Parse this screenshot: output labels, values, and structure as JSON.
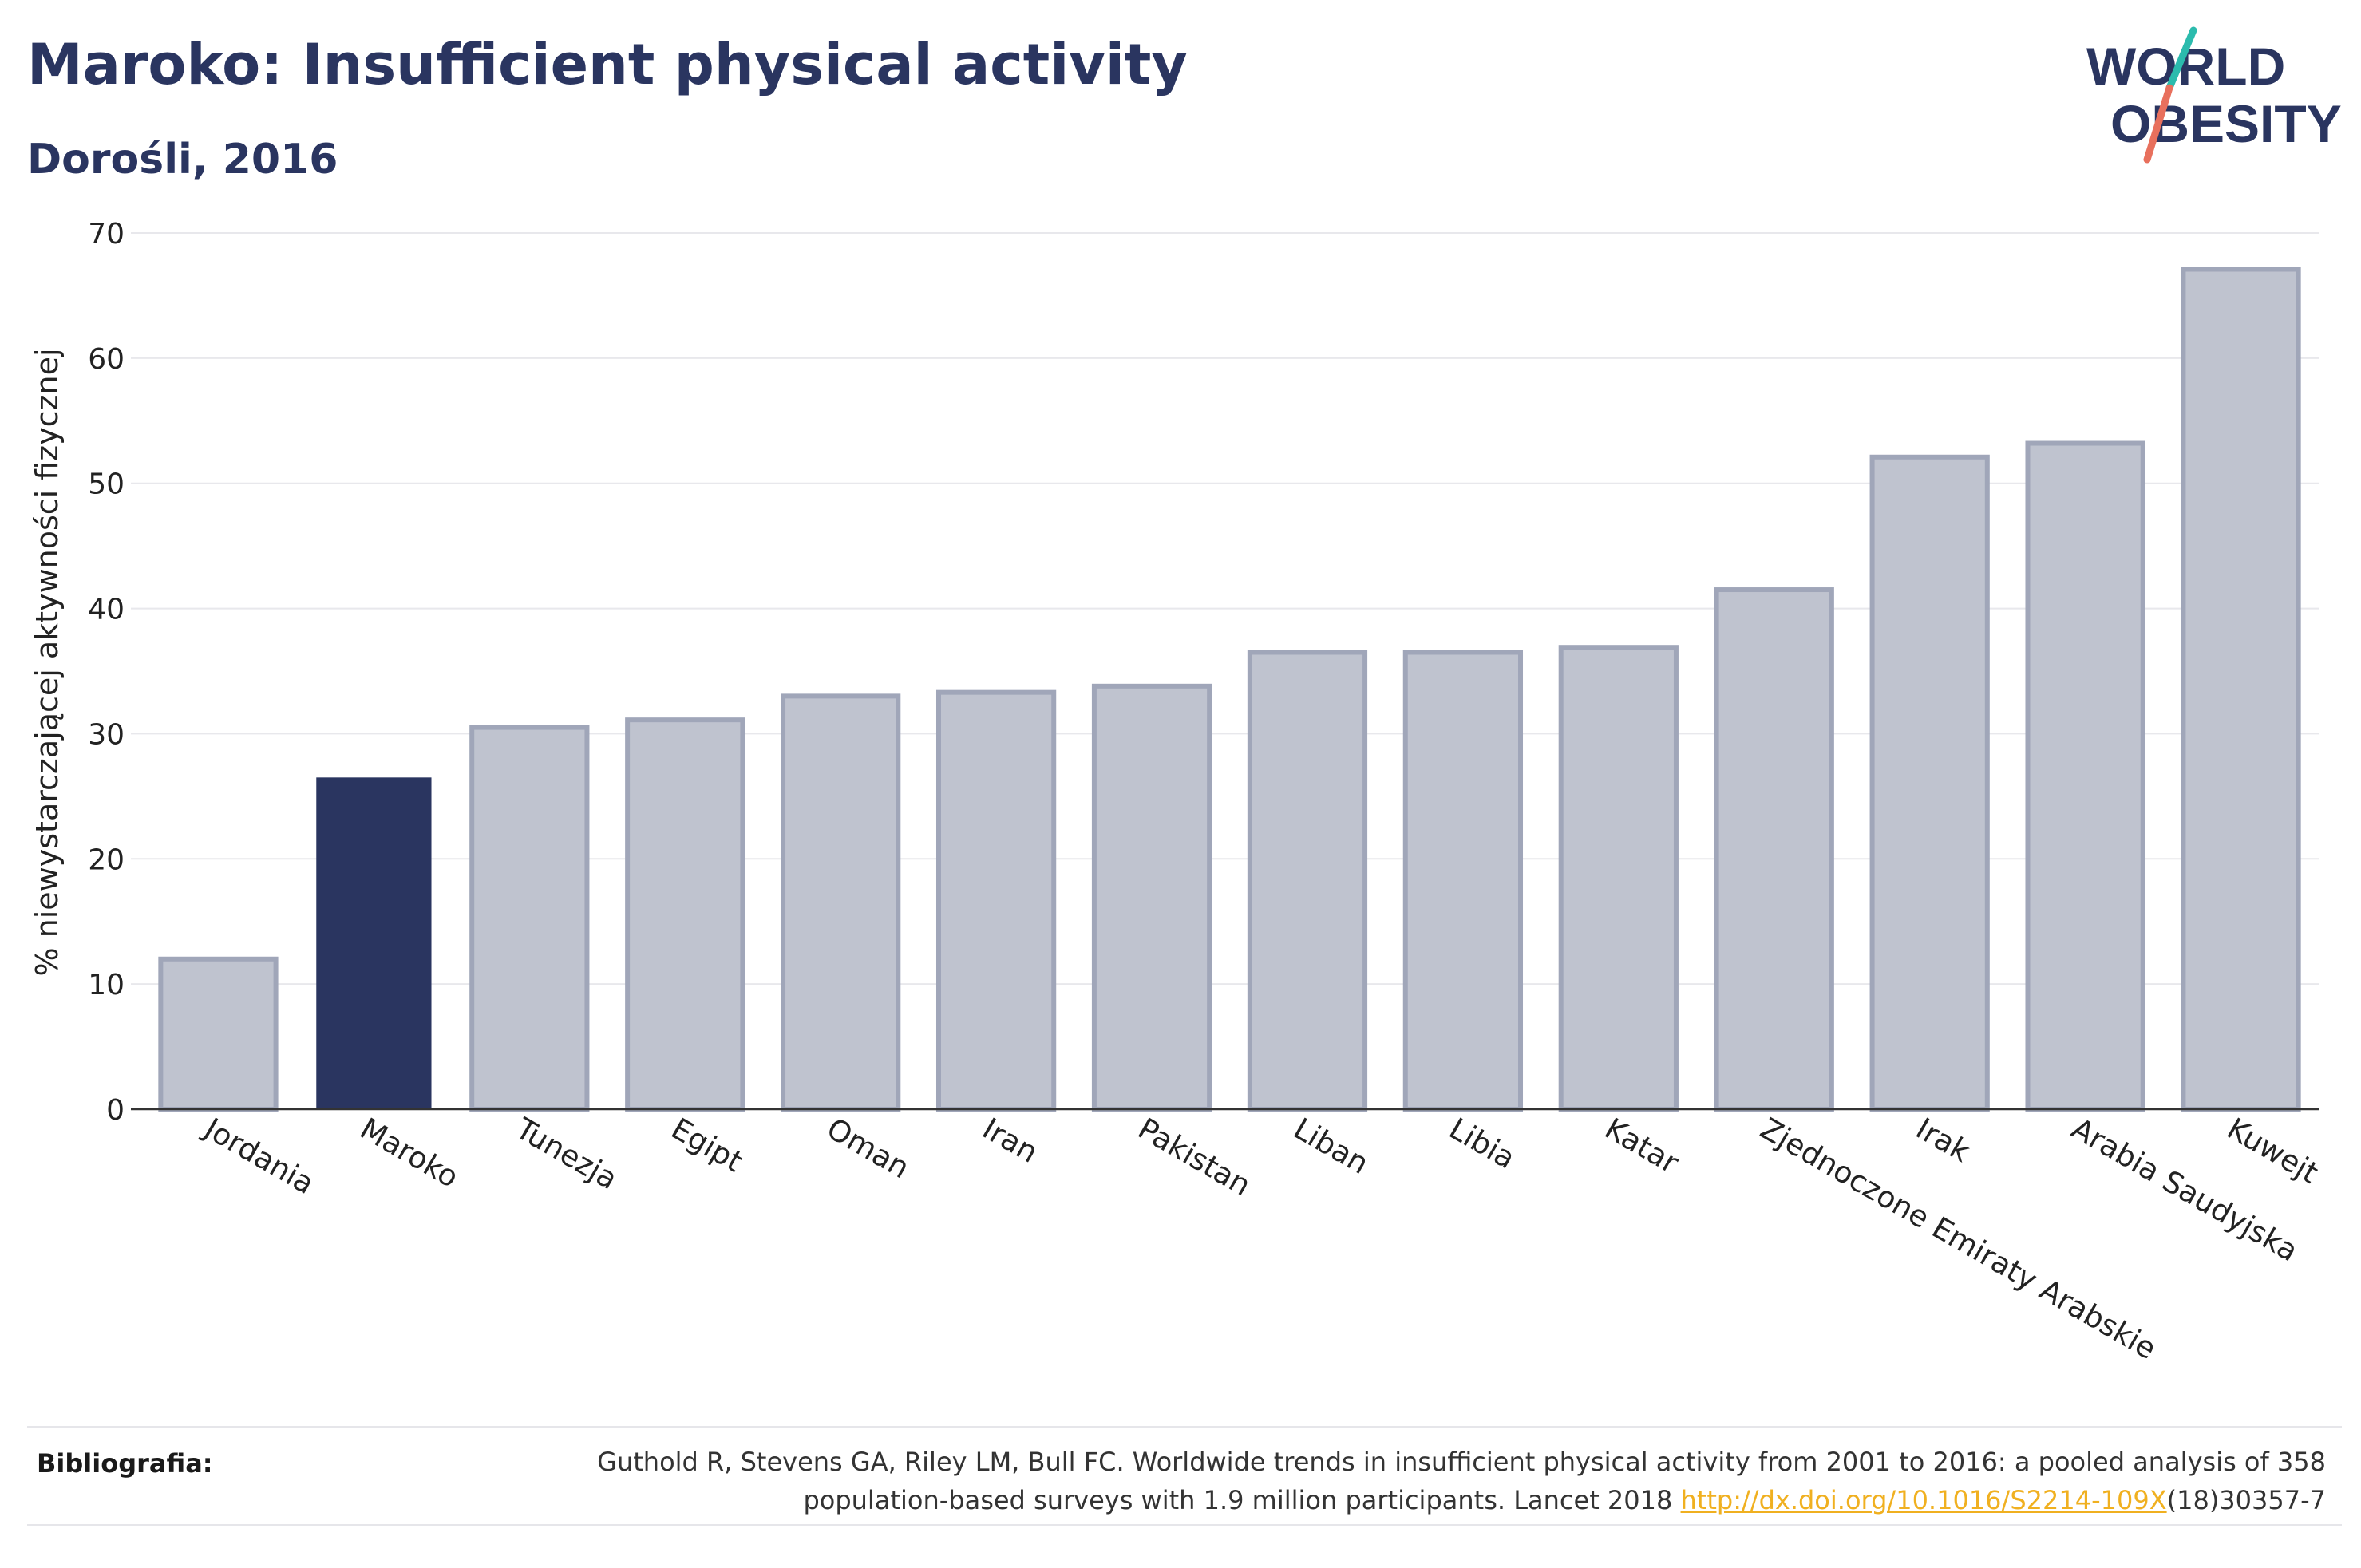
{
  "header": {
    "title": "Maroko: Insufficient physical activity",
    "subtitle": "Dorośli, 2016"
  },
  "logo": {
    "line1": "WORLD",
    "line2": "OBESITY"
  },
  "chart_data": {
    "type": "bar",
    "ylabel": "% niewystarczającej aktywności fizycznej",
    "xlabel": "",
    "ylim": [
      0,
      70
    ],
    "yticks": [
      0,
      10,
      20,
      30,
      40,
      50,
      60,
      70
    ],
    "grid": true,
    "categories": [
      "Jordania",
      "Maroko",
      "Tunezja",
      "Egipt",
      "Oman",
      "Iran",
      "Pakistan",
      "Liban",
      "Libia",
      "Katar",
      "Zjednoczone Emiraty Arabskie",
      "Irak",
      "Arabia Saudyjska",
      "Kuwejt"
    ],
    "values": [
      12.0,
      26.5,
      30.5,
      31.1,
      33.0,
      33.3,
      33.8,
      36.5,
      36.5,
      36.9,
      41.5,
      52.1,
      53.2,
      67.1
    ],
    "highlight": "Maroko",
    "colors": {
      "highlight": "#2a3560",
      "bar_fill": "#bfc3cf",
      "bar_stroke": "#a0a6b9"
    }
  },
  "bibliography": {
    "label": "Bibliografia:",
    "line1": "Guthold R, Stevens GA, Riley LM, Bull FC. Worldwide trends in insufficient physical activity from 2001 to 2016: a pooled analysis of 358",
    "line2_prefix": "population-based surveys with 1.9 million participants. Lancet 2018 ",
    "link": "http://dx.doi.org/10.1016/S2214-109X",
    "line2_suffix": "(18)30357-7"
  }
}
